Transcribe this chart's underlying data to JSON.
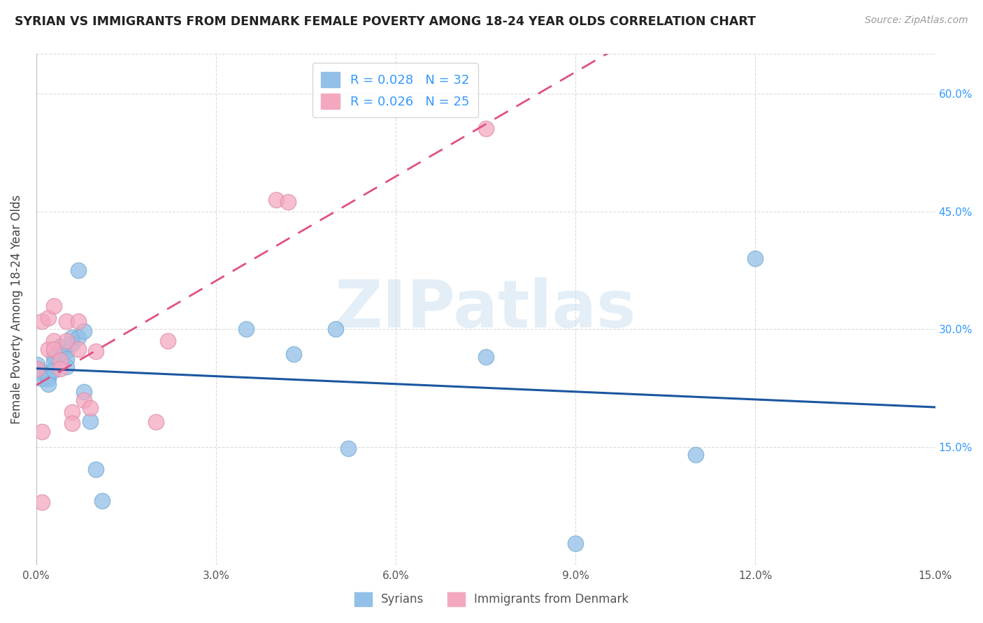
{
  "title": "SYRIAN VS IMMIGRANTS FROM DENMARK FEMALE POVERTY AMONG 18-24 YEAR OLDS CORRELATION CHART",
  "source": "Source: ZipAtlas.com",
  "ylabel": "Female Poverty Among 18-24 Year Olds",
  "xlim": [
    0.0,
    0.15
  ],
  "ylim": [
    0.0,
    0.65
  ],
  "xticks": [
    0.0,
    0.03,
    0.06,
    0.09,
    0.12,
    0.15
  ],
  "yticks": [
    0.0,
    0.15,
    0.3,
    0.45,
    0.6
  ],
  "xtick_labels": [
    "0.0%",
    "3.0%",
    "6.0%",
    "9.0%",
    "12.0%",
    "15.0%"
  ],
  "ytick_labels_right": [
    "",
    "15.0%",
    "30.0%",
    "45.0%",
    "60.0%"
  ],
  "blue_R": "0.028",
  "blue_N": "32",
  "pink_R": "0.026",
  "pink_N": "25",
  "blue_color": "#92c0e8",
  "pink_color": "#f4a8c0",
  "blue_line_color": "#1a56a0",
  "pink_line_color": "#e05080",
  "bottom_legend_syrians": "Syrians",
  "bottom_legend_denmark": "Immigrants from Denmark",
  "watermark": "ZIPatlas",
  "blue_x": [
    0.0001,
    0.0005,
    0.001,
    0.001,
    0.002,
    0.002,
    0.002,
    0.003,
    0.003,
    0.003,
    0.004,
    0.004,
    0.005,
    0.005,
    0.005,
    0.006,
    0.006,
    0.007,
    0.007,
    0.008,
    0.008,
    0.009,
    0.01,
    0.011,
    0.035,
    0.043,
    0.05,
    0.052,
    0.075,
    0.09,
    0.11,
    0.12
  ],
  "blue_y": [
    0.255,
    0.248,
    0.244,
    0.237,
    0.242,
    0.237,
    0.23,
    0.265,
    0.258,
    0.248,
    0.278,
    0.268,
    0.272,
    0.262,
    0.252,
    0.29,
    0.282,
    0.375,
    0.29,
    0.298,
    0.22,
    0.183,
    0.122,
    0.082,
    0.3,
    0.268,
    0.3,
    0.148,
    0.265,
    0.028,
    0.14,
    0.39
  ],
  "pink_x": [
    0.0001,
    0.001,
    0.001,
    0.002,
    0.002,
    0.003,
    0.003,
    0.003,
    0.004,
    0.004,
    0.005,
    0.005,
    0.006,
    0.006,
    0.007,
    0.007,
    0.008,
    0.009,
    0.01,
    0.02,
    0.022,
    0.04,
    0.042,
    0.075,
    0.001
  ],
  "pink_y": [
    0.25,
    0.31,
    0.17,
    0.315,
    0.275,
    0.33,
    0.285,
    0.275,
    0.26,
    0.25,
    0.31,
    0.285,
    0.195,
    0.18,
    0.31,
    0.275,
    0.21,
    0.2,
    0.272,
    0.182,
    0.285,
    0.465,
    0.462,
    0.555,
    0.08
  ]
}
